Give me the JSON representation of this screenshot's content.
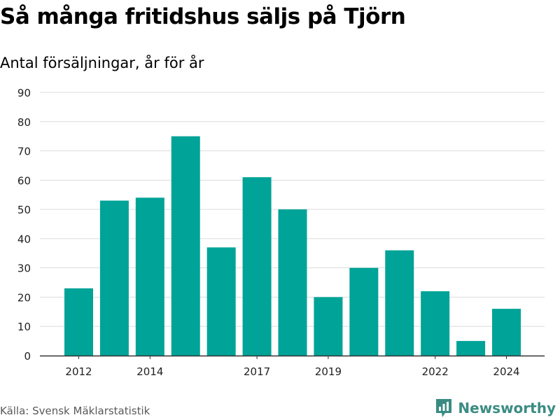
{
  "title": "Så många fritidshus säljs på Tjörn",
  "subtitle": "Antal försäljningar, år för år",
  "source": "Källa: Svensk Mäklarstatistik",
  "brand": "Newsworthy",
  "colors": {
    "bar": "#00a398",
    "grid": "#dcdcdc",
    "axis": "#333333",
    "brand": "#3a8c83"
  },
  "chart_data": {
    "type": "bar",
    "title": "Så många fritidshus säljs på Tjörn",
    "subtitle": "Antal försäljningar, år för år",
    "xlabel": "",
    "ylabel": "",
    "categories": [
      2012,
      2013,
      2014,
      2015,
      2016,
      2017,
      2018,
      2019,
      2020,
      2021,
      2022,
      2023,
      2024
    ],
    "values": [
      23,
      53,
      54,
      75,
      37,
      61,
      50,
      20,
      30,
      36,
      22,
      5,
      16
    ],
    "x_tick_labels": [
      "2012",
      "2014",
      "2017",
      "2019",
      "2022",
      "2024"
    ],
    "y_ticks": [
      0,
      10,
      20,
      30,
      40,
      50,
      60,
      70,
      80,
      90
    ],
    "ylim": [
      0,
      90
    ],
    "grid": true,
    "legend": "none"
  }
}
